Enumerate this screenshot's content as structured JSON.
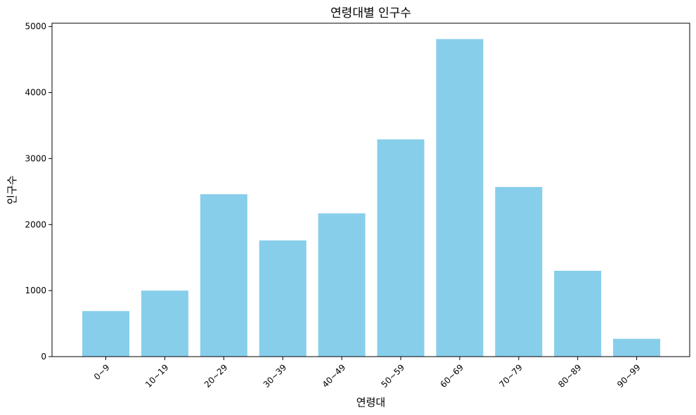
{
  "chart_data": {
    "type": "bar",
    "title": "연령대별 인구수",
    "xlabel": "연령대",
    "ylabel": "인구수",
    "categories": [
      "0~9",
      "10~19",
      "20~29",
      "30~39",
      "40~49",
      "50~59",
      "60~69",
      "70~79",
      "80~89",
      "90~99"
    ],
    "values": [
      690,
      1000,
      2460,
      1760,
      2170,
      3290,
      4810,
      2570,
      1300,
      270
    ],
    "ylim": [
      0,
      5050
    ],
    "yticks": [
      0,
      1000,
      2000,
      3000,
      4000,
      5000
    ],
    "bar_color": "#87CEEB",
    "grid": false,
    "legend": false
  }
}
